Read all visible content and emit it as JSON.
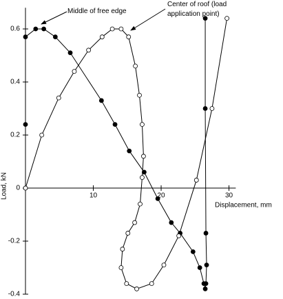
{
  "chart_data": {
    "type": "line",
    "x_label": "Displacement, mm",
    "y_label": "Load, kN",
    "xlim": [
      0,
      31
    ],
    "ylim": [
      -0.4,
      0.68
    ],
    "xticks": [
      10,
      20,
      30
    ],
    "yticks": [
      -0.4,
      -0.2,
      0,
      0.2,
      0.4,
      0.6
    ],
    "series": [
      {
        "name": "Middle of free edge",
        "color": "#000000",
        "marker_fill": "#000000",
        "x": [
          0,
          0,
          0,
          1.5,
          2.7,
          4.4,
          6.6,
          11.2,
          13.2,
          15.3,
          17.5,
          19.5,
          21.5,
          22.8,
          24.7,
          25.7,
          26.3,
          26.5,
          26.6,
          26.7,
          26.6,
          26.5,
          26.5
        ],
        "values": [
          0,
          0.24,
          0.57,
          0.6,
          0.6,
          0.57,
          0.51,
          0.33,
          0.24,
          0.14,
          0.06,
          -0.04,
          -0.13,
          -0.17,
          -0.24,
          -0.3,
          -0.36,
          -0.38,
          -0.36,
          -0.29,
          -0.17,
          0.3,
          0.64
        ]
      },
      {
        "name": "Center of roof (load application point)",
        "color": "#000000",
        "marker_fill": "#ffffff",
        "x": [
          0,
          2.4,
          4.9,
          7.2,
          9.3,
          11.3,
          12.8,
          14.1,
          15.2,
          16.2,
          16.8,
          17.2,
          17.4,
          17.2,
          16.9,
          16.1,
          15.1,
          14.3,
          14.1,
          14.9,
          16.4,
          18.6,
          20.4,
          22.6,
          25.2,
          27.5,
          29.7
        ],
        "values": [
          0,
          0.2,
          0.34,
          0.44,
          0.52,
          0.57,
          0.6,
          0.6,
          0.57,
          0.46,
          0.35,
          0.24,
          0.12,
          0.04,
          -0.06,
          -0.13,
          -0.17,
          -0.23,
          -0.3,
          -0.36,
          -0.38,
          -0.36,
          -0.29,
          -0.18,
          0.03,
          0.3,
          0.64
        ]
      }
    ]
  }
}
